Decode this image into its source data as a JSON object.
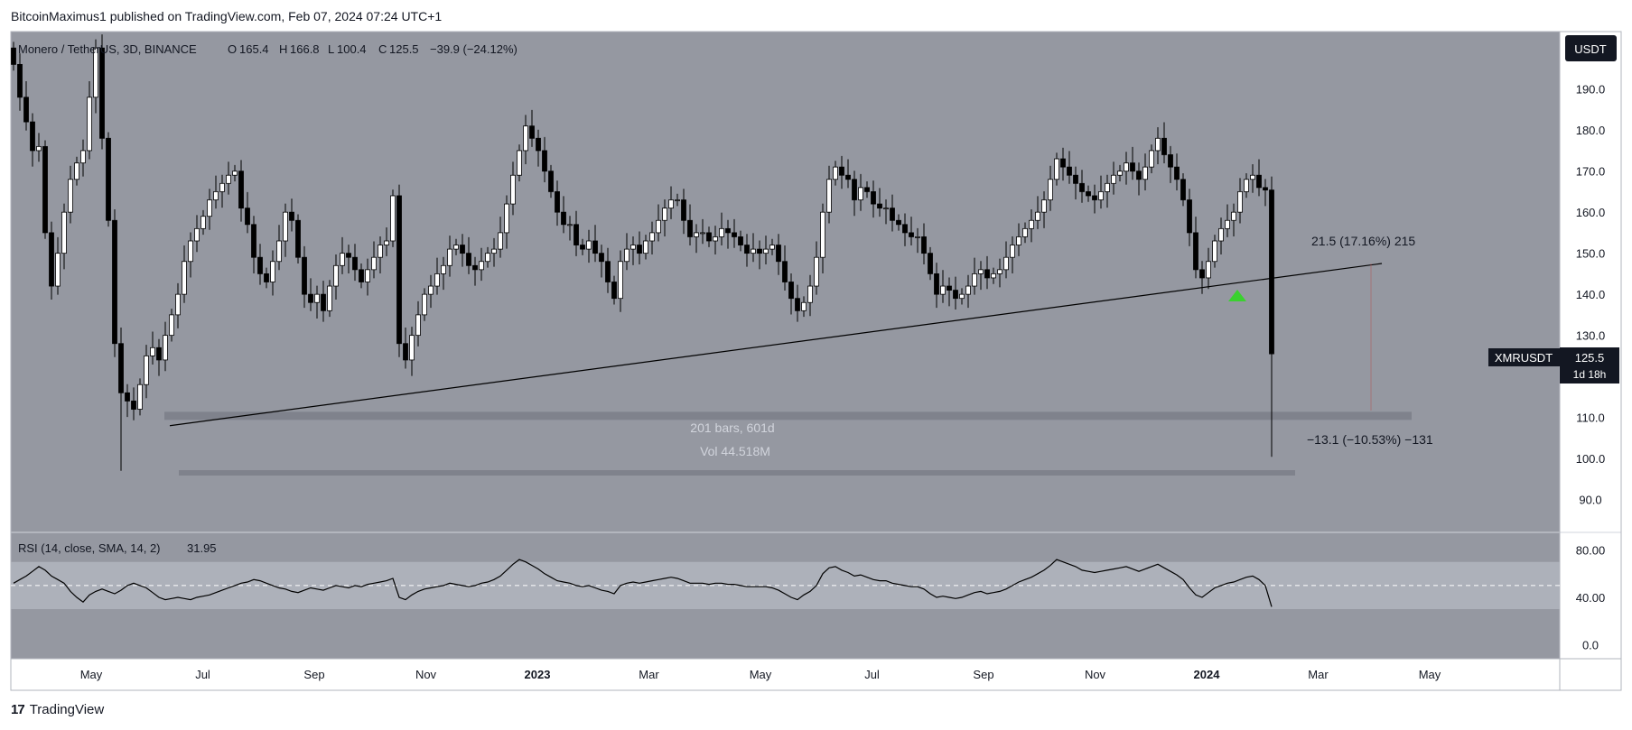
{
  "header": {
    "text": "BitcoinMaximus1 published on TradingView.com, Feb 07, 2024 07:24 UTC+1"
  },
  "footer": {
    "logo": "17",
    "brand": "TradingView"
  },
  "colors": {
    "panel_bg": "#9598a1",
    "band": "#b2b5be",
    "candle_up": "#ffffff",
    "candle_down": "#000000",
    "green_marker": "#3ad12f"
  },
  "chart_data": {
    "type": "candlestick",
    "symbol_line": {
      "symbol": "Monero / TetherUS, 3D, BINANCE",
      "o": "O",
      "o_val": "165.4",
      "h": "H",
      "h_val": "166.8",
      "l": "L",
      "l_val": "100.4",
      "c": "C",
      "c_val": "125.5",
      "change": "−39.9 (−24.12%)"
    },
    "currency_label": "USDT",
    "price_ticks": [
      "190.0",
      "180.0",
      "170.0",
      "160.0",
      "150.0",
      "140.0",
      "130.0",
      "110.0",
      "100.0",
      "90.0"
    ],
    "price_tick_values": [
      190,
      180,
      170,
      160,
      150,
      140,
      130,
      110,
      100,
      90
    ],
    "ylim": [
      82,
      204
    ],
    "time_ticks": [
      "May",
      "Jul",
      "Sep",
      "Nov",
      "2023",
      "Mar",
      "May",
      "Jul",
      "Sep",
      "Nov",
      "2024",
      "Mar",
      "May"
    ],
    "time_tick_bold": [
      false,
      false,
      false,
      false,
      true,
      false,
      false,
      false,
      false,
      false,
      true,
      false,
      false
    ],
    "last_price": {
      "symbol": "XMRUSDT",
      "price": "125.5",
      "countdown": "1d 18h",
      "value": 125.5
    },
    "measure_up": {
      "text": "21.5 (17.16%) 215"
    },
    "measure_down": {
      "text": "−13.1 (−10.53%) −131"
    },
    "range_info": {
      "bars": "201 bars, 601d",
      "vol": "Vol 44.518M"
    },
    "support_band_values": [
      110.5,
      96.5
    ],
    "trendline": {
      "start_value": 108,
      "end_value": 147.5
    },
    "closes": [
      196,
      188,
      182,
      175,
      176,
      155,
      142,
      150,
      160,
      168,
      172,
      175,
      188,
      200,
      178,
      158,
      128,
      116,
      114,
      112,
      118,
      125,
      127,
      124,
      130,
      135,
      140,
      148,
      153,
      156,
      159,
      163,
      165,
      167,
      169,
      170,
      161,
      157,
      149,
      145,
      143,
      148,
      153,
      160,
      158,
      149,
      140,
      138,
      140,
      136,
      142,
      147,
      150,
      149,
      146,
      143,
      146,
      149,
      152,
      153,
      164,
      128,
      124,
      130,
      135,
      140,
      142,
      145,
      147,
      151,
      152,
      150,
      147,
      146,
      148,
      150,
      151,
      155,
      162,
      169,
      175,
      181,
      178,
      175,
      170,
      165,
      160,
      157,
      157,
      152,
      151,
      153,
      150,
      148,
      143,
      139,
      148,
      151,
      152,
      150,
      153,
      155,
      158,
      161,
      163,
      163,
      158,
      154,
      155,
      155,
      153,
      154,
      156,
      155,
      154,
      152,
      150,
      151,
      150,
      151,
      152,
      148,
      143,
      139,
      136,
      138,
      142,
      149,
      160,
      168,
      171,
      169,
      168,
      163,
      166,
      165,
      162,
      161,
      161,
      158,
      157,
      155,
      154,
      154,
      150,
      145,
      140,
      142,
      141,
      139,
      140,
      142,
      145,
      146,
      144,
      145,
      146,
      149,
      152,
      154,
      156,
      158,
      160,
      163,
      168,
      173,
      171,
      169,
      167,
      165,
      164,
      163,
      165,
      167,
      169,
      170,
      172,
      170,
      168,
      171,
      175,
      178,
      174,
      171,
      168,
      163,
      155,
      146,
      144,
      148,
      153,
      156,
      158,
      160,
      165,
      168,
      169,
      166,
      165.4,
      125.5
    ],
    "rsi": {
      "label": "RSI (14, close, SMA, 14, 2)",
      "value_text": "31.95",
      "ticks": [
        "80.00",
        "40.00",
        "0.0"
      ],
      "tick_values": [
        80,
        40,
        0
      ],
      "ylim": [
        -12,
        95
      ],
      "band": [
        70,
        30
      ],
      "midline": 50,
      "series": [
        52,
        55,
        58,
        62,
        66,
        63,
        58,
        55,
        52,
        45,
        40,
        36,
        42,
        45,
        47,
        45,
        43,
        46,
        50,
        52,
        50,
        48,
        44,
        40,
        38,
        39,
        40,
        39,
        38,
        40,
        41,
        42,
        44,
        46,
        48,
        50,
        52,
        53,
        55,
        54,
        52,
        50,
        48,
        47,
        45,
        44,
        46,
        48,
        47,
        46,
        48,
        50,
        49,
        48,
        50,
        49,
        51,
        52,
        53,
        54,
        56,
        40,
        38,
        42,
        45,
        47,
        48,
        49,
        50,
        52,
        51,
        50,
        49,
        50,
        52,
        53,
        55,
        58,
        63,
        68,
        72,
        70,
        67,
        64,
        60,
        57,
        54,
        53,
        52,
        50,
        49,
        50,
        48,
        46,
        45,
        43,
        50,
        52,
        53,
        52,
        53,
        54,
        55,
        56,
        57,
        56,
        54,
        52,
        52,
        52,
        51,
        52,
        52,
        51,
        51,
        50,
        49,
        49,
        49,
        49,
        48,
        46,
        43,
        40,
        38,
        42,
        45,
        50,
        60,
        65,
        66,
        63,
        61,
        58,
        59,
        57,
        55,
        54,
        54,
        52,
        51,
        50,
        49,
        49,
        47,
        43,
        40,
        41,
        40,
        39,
        40,
        42,
        44,
        45,
        43,
        44,
        45,
        47,
        50,
        53,
        55,
        57,
        60,
        63,
        67,
        72,
        70,
        68,
        66,
        63,
        62,
        61,
        62,
        63,
        64,
        65,
        66,
        64,
        62,
        64,
        66,
        68,
        65,
        62,
        59,
        55,
        48,
        42,
        40,
        44,
        48,
        50,
        52,
        53,
        55,
        57,
        58,
        55,
        50,
        32
      ]
    }
  }
}
